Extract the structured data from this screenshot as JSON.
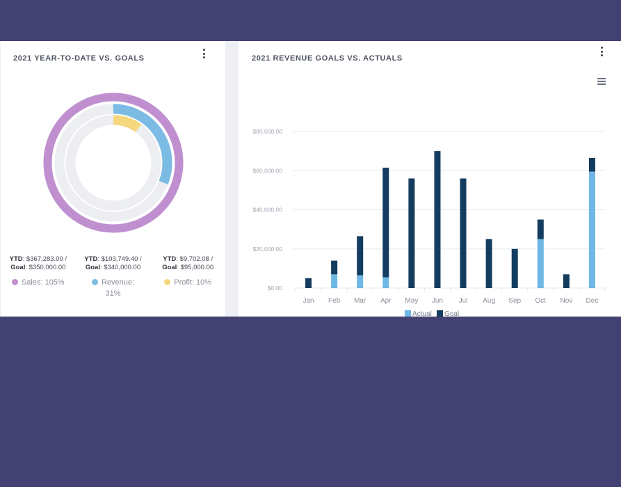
{
  "left_card": {
    "title": "2021 YEAR-TO-DATE VS. GOALS",
    "menu_icon": "kebab-vertical",
    "stats": [
      {
        "ytd_label": "YTD",
        "ytd_value": ": $367,283.00 /",
        "goal_label": "Goal",
        "goal_value": ": $350,000.00"
      },
      {
        "ytd_label": "YTD",
        "ytd_value": ": $103,749.40 /",
        "goal_label": "Goal",
        "goal_value": ": $340,000.00"
      },
      {
        "ytd_label": "YTD",
        "ytd_value": ": $9,702.08 /",
        "goal_label": "Goal",
        "goal_value": ": $95,000.00"
      }
    ],
    "legend": [
      {
        "label": "Sales: 105%",
        "color": "#c08fcf"
      },
      {
        "label": "Revenue:",
        "label2": "31%",
        "color": "#7cbbe3"
      },
      {
        "label": "Profit: 10%",
        "color": "#f5d77e"
      }
    ]
  },
  "right_card": {
    "title": "2021 REVENUE GOALS VS. ACTUALS",
    "menu_icon": "kebab-vertical",
    "hamburger_icon": "hamburger-menu"
  },
  "chart_data": [
    {
      "type": "pie",
      "variant": "radial-progress",
      "series": [
        {
          "name": "Sales",
          "percent": 105,
          "color": "#c08fcf"
        },
        {
          "name": "Revenue",
          "percent": 31,
          "color": "#7cbbe3"
        },
        {
          "name": "Profit",
          "percent": 10,
          "color": "#f5d77e"
        }
      ],
      "track_color": "#eceef2"
    },
    {
      "type": "bar",
      "stacked": true,
      "categories": [
        "Jan",
        "Feb",
        "Mar",
        "Apr",
        "May",
        "Jun",
        "Jul",
        "Aug",
        "Sep",
        "Oct",
        "Nov",
        "Dec"
      ],
      "series": [
        {
          "name": "Actual",
          "color": "#6eb8e3",
          "values": [
            0,
            7000,
            6500,
            5500,
            0,
            0,
            0,
            0,
            0,
            25000,
            0,
            59500
          ]
        },
        {
          "name": "Goal",
          "color": "#143c5f",
          "values": [
            5000,
            7000,
            20000,
            56000,
            56000,
            70000,
            56000,
            25000,
            20000,
            10000,
            7000,
            7000
          ]
        }
      ],
      "yticks": [
        "$0.00",
        "$20,000.00",
        "$40,000.00",
        "$60,000.00",
        "$80,000.00"
      ],
      "ylim": [
        0,
        80000
      ],
      "grid": true,
      "legend_position": "bottom"
    }
  ]
}
